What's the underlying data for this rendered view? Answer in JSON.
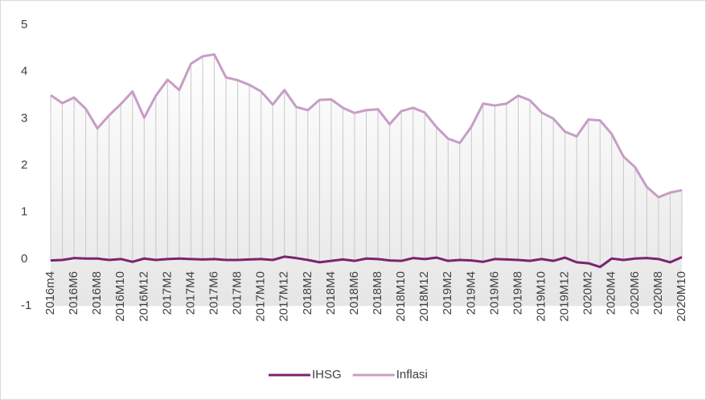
{
  "chart_data": {
    "type": "line",
    "categories": [
      "2016m4",
      null,
      "2016M6",
      null,
      "2016M8",
      null,
      "2016M10",
      null,
      "2016M12",
      null,
      "2017M2",
      null,
      "2017M4",
      null,
      "2017M6",
      null,
      "2017M8",
      null,
      "2017M10",
      null,
      "2017M12",
      null,
      "2018M2",
      null,
      "2018M4",
      null,
      "2018M6",
      null,
      "2018M8",
      null,
      "2018M10",
      null,
      "2018M12",
      null,
      "2019M2",
      null,
      "2019M4",
      null,
      "2019M6",
      null,
      "2019M8",
      null,
      "2019M10",
      null,
      "2019M12",
      null,
      "2020M2",
      null,
      "2020M4",
      null,
      "2020M6",
      null,
      "2020M8",
      null,
      "2020M10"
    ],
    "series": [
      {
        "name": "IHSG",
        "color": "#7b2470",
        "values": [
          -0.03,
          -0.02,
          0.02,
          0.01,
          0.01,
          -0.02,
          0,
          -0.06,
          0.01,
          -0.02,
          0,
          0.01,
          0,
          -0.01,
          0,
          -0.02,
          -0.02,
          -0.01,
          0,
          -0.02,
          0.05,
          0.02,
          -0.02,
          -0.07,
          -0.04,
          -0.01,
          -0.04,
          0.01,
          0,
          -0.03,
          -0.04,
          0.02,
          0,
          0.03,
          -0.04,
          -0.02,
          -0.03,
          -0.06,
          0,
          -0.01,
          -0.02,
          -0.04,
          0,
          -0.04,
          0.03,
          -0.07,
          -0.09,
          -0.17,
          0.01,
          -0.02,
          0.01,
          0.02,
          0,
          -0.07,
          0.04
        ]
      },
      {
        "name": "Inflasi",
        "color": "#c79dc6",
        "values": [
          3.5,
          3.33,
          3.45,
          3.21,
          2.79,
          3.07,
          3.31,
          3.58,
          3.02,
          3.49,
          3.83,
          3.61,
          4.17,
          4.33,
          4.37,
          3.88,
          3.82,
          3.72,
          3.58,
          3.3,
          3.61,
          3.25,
          3.18,
          3.4,
          3.41,
          3.23,
          3.12,
          3.18,
          3.2,
          2.88,
          3.16,
          3.23,
          3.13,
          2.82,
          2.57,
          2.48,
          2.83,
          3.32,
          3.28,
          3.32,
          3.49,
          3.39,
          3.13,
          3.0,
          2.72,
          2.62,
          2.98,
          2.96,
          2.67,
          2.19,
          1.96,
          1.54,
          1.32,
          1.42,
          1.47
        ]
      }
    ],
    "ylim": [
      -1,
      5
    ],
    "yticks": [
      -1,
      0,
      1,
      2,
      3,
      4,
      5
    ],
    "grid": false,
    "legend": "bottom"
  }
}
